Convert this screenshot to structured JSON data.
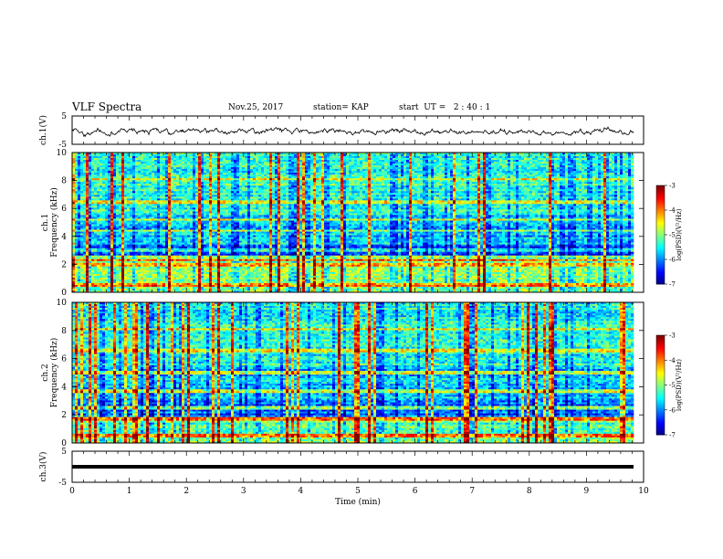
{
  "header": {
    "title": "VLF Spectra",
    "date": "Nov.25, 2017",
    "station": "station= KAP",
    "start_ut": "start  UT =   2 : 40 : 1"
  },
  "chart_data": [
    {
      "type": "line",
      "panel": "ch1-waveform",
      "ylabel": "ch.1(V)",
      "yticks": [
        "5",
        "-5"
      ],
      "ylim": [
        -5,
        5
      ],
      "xlim": [
        0,
        10
      ],
      "description": "noisy signal fluctuating around ~-0.5 V with amplitude ~2 V"
    },
    {
      "type": "heatmap",
      "panel": "ch1-spectrogram",
      "ylabel": "ch.1\nFrequency (kHz)",
      "yticks": [
        "0",
        "2",
        "4",
        "6",
        "8",
        "10"
      ],
      "ylim": [
        0,
        10
      ],
      "xlim": [
        0,
        9.85
      ],
      "colorbar": {
        "label": "log(PSD)(V²/Hz)",
        "ticks": [
          "-3",
          "-4",
          "-5",
          "-6",
          "-7"
        ],
        "range": [
          -7,
          -3
        ]
      },
      "notable_frequencies_khz": [
        0.5,
        2.0,
        2.3,
        3.0,
        4.4,
        5.2,
        6.5,
        8.1
      ]
    },
    {
      "type": "heatmap",
      "panel": "ch2-spectrogram",
      "ylabel": "ch.2\nFrequency (kHz)",
      "yticks": [
        "0",
        "2",
        "4",
        "6",
        "8",
        "10"
      ],
      "ylim": [
        0,
        10
      ],
      "xlim": [
        0,
        9.85
      ],
      "colorbar": {
        "label": "log(PSD)(V²/Hz)",
        "ticks": [
          "-3",
          "-4",
          "-5",
          "-6",
          "-7"
        ],
        "range": [
          -7,
          -3
        ]
      },
      "notable_frequencies_khz": [
        0.5,
        1.7,
        2.5,
        3.7,
        5.0,
        6.6,
        8.1
      ]
    },
    {
      "type": "line",
      "panel": "ch3-waveform",
      "ylabel": "ch.3(V)",
      "yticks": [
        "5",
        "-5"
      ],
      "ylim": [
        -5,
        5
      ],
      "xlim": [
        0,
        10
      ],
      "constant_value": 0
    }
  ],
  "xaxis": {
    "label": "Time  (min)",
    "ticks": [
      "0",
      "1",
      "2",
      "3",
      "4",
      "5",
      "6",
      "7",
      "8",
      "9",
      "10"
    ]
  }
}
